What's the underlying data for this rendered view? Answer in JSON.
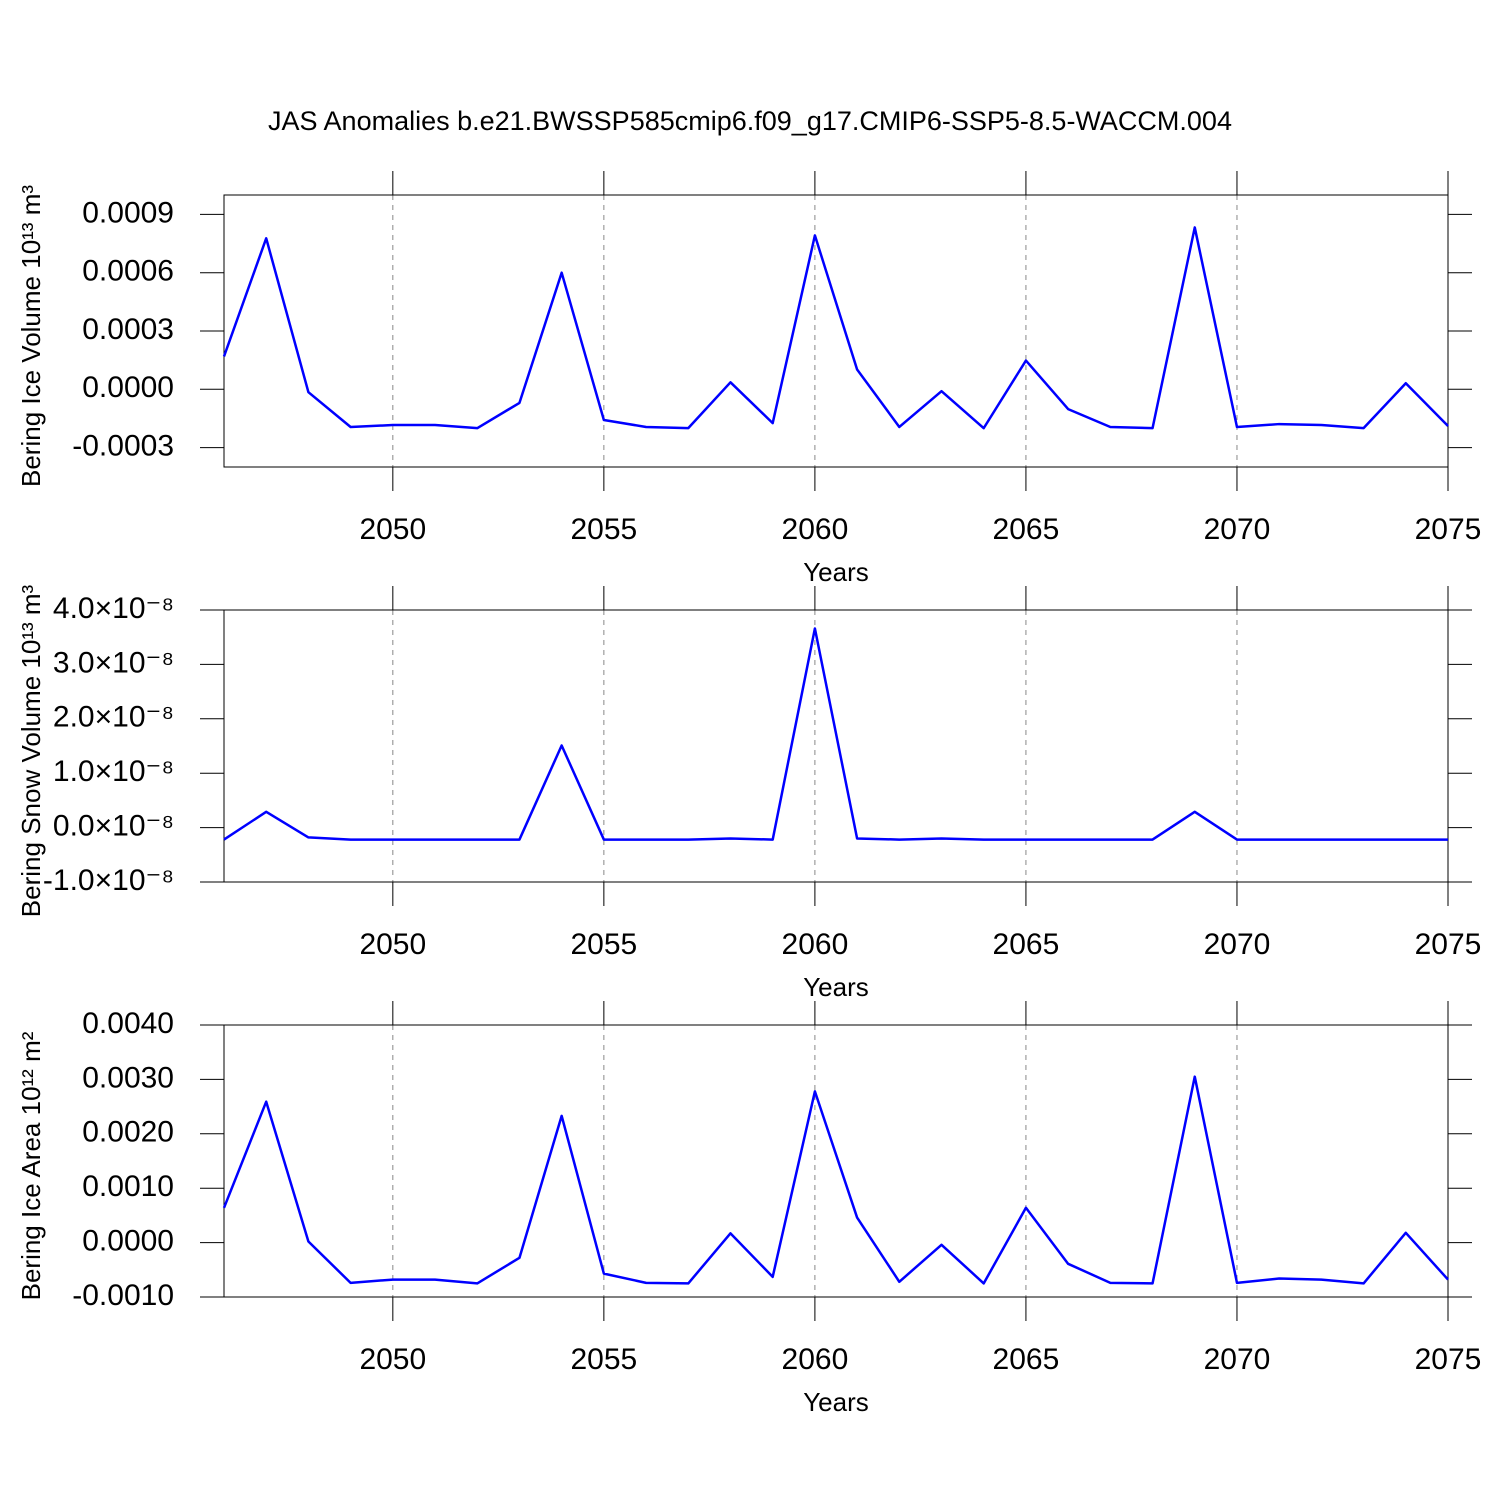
{
  "chart_data": [
    {
      "type": "line",
      "title": "JAS Anomalies b.e21.BWSSP585cmip6.f09_g17.CMIP6-SSP5-8.5-WACCM.004",
      "x_label": "Years",
      "y_label": "Bering Ice Volume 10¹³ m³",
      "color": "#0000ff",
      "grid": true,
      "x": [
        2046,
        2047,
        2048,
        2049,
        2050,
        2051,
        2052,
        2053,
        2054,
        2055,
        2056,
        2057,
        2058,
        2059,
        2060,
        2061,
        2062,
        2063,
        2064,
        2065,
        2066,
        2067,
        2068,
        2069,
        2070,
        2071,
        2072,
        2073,
        2074,
        2075
      ],
      "values": [
        0.000169,
        0.000777,
        -1.5e-05,
        -0.000194,
        -0.000184,
        -0.000184,
        -0.0002,
        -7e-05,
        0.0006,
        -0.000158,
        -0.000194,
        -0.0002,
        3.6e-05,
        -0.000174,
        0.000792,
        0.000102,
        -0.000194,
        -1e-05,
        -0.0002,
        0.000148,
        -0.000102,
        -0.000194,
        -0.0002,
        0.000833,
        -0.000194,
        -0.000179,
        -0.000184,
        -0.0002,
        3.1e-05,
        -0.000189
      ],
      "xlim": [
        2046,
        2075
      ],
      "xticks": [
        2050,
        2055,
        2060,
        2065,
        2070,
        2075
      ],
      "ylim": [
        -0.0004,
        0.001
      ],
      "yticks": [
        0.0009,
        0.0006,
        0.0003,
        {
          "value": 0,
          "label": "0.0000"
        },
        -0.0003
      ]
    },
    {
      "type": "line",
      "x_label": "Years",
      "y_label": "Bering Snow Volume 10¹³ m³",
      "color": "#0000ff",
      "grid": true,
      "x": [
        2046,
        2047,
        2048,
        2049,
        2050,
        2051,
        2052,
        2053,
        2054,
        2055,
        2056,
        2057,
        2058,
        2059,
        2060,
        2061,
        2062,
        2063,
        2064,
        2065,
        2066,
        2067,
        2068,
        2069,
        2070,
        2071,
        2072,
        2073,
        2074,
        2075
      ],
      "values": [
        -2.2e-09,
        2.9e-09,
        -1.8e-09,
        -2.2e-09,
        -2.2e-09,
        -2.2e-09,
        -2.2e-09,
        -2.2e-09,
        1.51e-08,
        -2.2e-09,
        -2.2e-09,
        -2.2e-09,
        -2e-09,
        -2.2e-09,
        3.66e-08,
        -2e-09,
        -2.2e-09,
        -2e-09,
        -2.2e-09,
        -2.2e-09,
        -2.2e-09,
        -2.2e-09,
        -2.2e-09,
        2.9e-09,
        -2.2e-09,
        -2.2e-09,
        -2.2e-09,
        -2.2e-09,
        -2.2e-09,
        -2.2e-09
      ],
      "xlim": [
        2046,
        2075
      ],
      "xticks": [
        2050,
        2055,
        2060,
        2065,
        2070,
        2075
      ],
      "ylim": [
        -1e-08,
        4e-08
      ],
      "yticks": [
        {
          "value": 4e-08,
          "label": "4.0×10⁻⁸"
        },
        {
          "value": 3e-08,
          "label": "3.0×10⁻⁸"
        },
        {
          "value": 2e-08,
          "label": "2.0×10⁻⁸"
        },
        {
          "value": 1e-08,
          "label": "1.0×10⁻⁸"
        },
        {
          "value": 0,
          "label": "0.0×10⁻⁸"
        },
        {
          "value": -1e-08,
          "label": "-1.0×10⁻⁸"
        }
      ]
    },
    {
      "type": "line",
      "x_label": "Years",
      "y_label": "Bering Ice Area 10¹² m²",
      "color": "#0000ff",
      "grid": true,
      "x": [
        2046,
        2047,
        2048,
        2049,
        2050,
        2051,
        2052,
        2053,
        2054,
        2055,
        2056,
        2057,
        2058,
        2059,
        2060,
        2061,
        2062,
        2063,
        2064,
        2065,
        2066,
        2067,
        2068,
        2069,
        2070,
        2071,
        2072,
        2073,
        2074,
        2075
      ],
      "values": [
        0.00064,
        0.00259,
        2e-05,
        -0.00074,
        -0.00068,
        -0.00068,
        -0.00075,
        -0.00028,
        0.00233,
        -0.00057,
        -0.00074,
        -0.00075,
        0.00017,
        -0.00063,
        0.00278,
        0.00046,
        -0.00072,
        -4e-05,
        -0.00075,
        0.00064,
        -0.00039,
        -0.00074,
        -0.00075,
        0.00305,
        -0.00074,
        -0.00066,
        -0.00068,
        -0.00075,
        0.00018,
        -0.00068
      ],
      "xlim": [
        2046,
        2075
      ],
      "xticks": [
        2050,
        2055,
        2060,
        2065,
        2070,
        2075
      ],
      "ylim": [
        -0.001,
        0.004
      ],
      "yticks": [
        {
          "value": 0.004,
          "label": "0.0040"
        },
        {
          "value": 0.003,
          "label": "0.0030"
        },
        {
          "value": 0.002,
          "label": "0.0020"
        },
        {
          "value": 0.001,
          "label": "0.0010"
        },
        {
          "value": 0,
          "label": "0.0000"
        },
        {
          "value": -0.001,
          "label": "-0.0010"
        }
      ]
    }
  ]
}
